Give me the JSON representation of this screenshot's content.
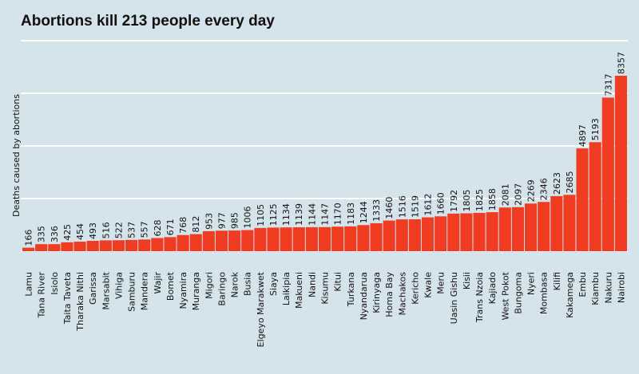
{
  "chart_data": {
    "type": "bar",
    "title": "Abortions kill 213 people every day",
    "xlabel": "",
    "ylabel": "Deaths caused by abortions",
    "ylim": [
      0,
      8900
    ],
    "grid": true,
    "bar_color": "#f03c23",
    "background_color": "#d5e4eb",
    "categories": [
      "Lamu",
      "Tana River",
      "Isiolo",
      "Taita Taveta",
      "Tharaka Nithi",
      "Garissa",
      "Marsabit",
      "Vihiga",
      "Samburu",
      "Mandera",
      "Wajir",
      "Bomet",
      "Nyamira",
      "Muranga",
      "Migori",
      "Baringo",
      "Narok",
      "Busia",
      "Elgeyo Marakwet",
      "Siaya",
      "Laikipia",
      "Makueni",
      "Nandi",
      "Kisumu",
      "Kitui",
      "Turkana",
      "Nyandarua",
      "Kirinyaga",
      "Homa Bay",
      "Machakos",
      "Kericho",
      "Kwale",
      "Meru",
      "Uasin Gishu",
      "Kisii",
      "Trans Nzoia",
      "Kajiado",
      "West Pokot",
      "Bungoma",
      "Nyeri",
      "Mombasa",
      "Kilifi",
      "Kakamega",
      "Embu",
      "Kiambu",
      "Nakuru",
      "Nairobi"
    ],
    "values": [
      166,
      335,
      336,
      425,
      454,
      493,
      516,
      522,
      537,
      557,
      628,
      671,
      768,
      812,
      953,
      977,
      985,
      1006,
      1105,
      1125,
      1134,
      1139,
      1144,
      1147,
      1170,
      1183,
      1244,
      1333,
      1460,
      1516,
      1519,
      1612,
      1660,
      1792,
      1805,
      1825,
      1858,
      2081,
      2097,
      2269,
      2346,
      2623,
      2685,
      4897,
      5193,
      7317,
      8357
    ]
  }
}
